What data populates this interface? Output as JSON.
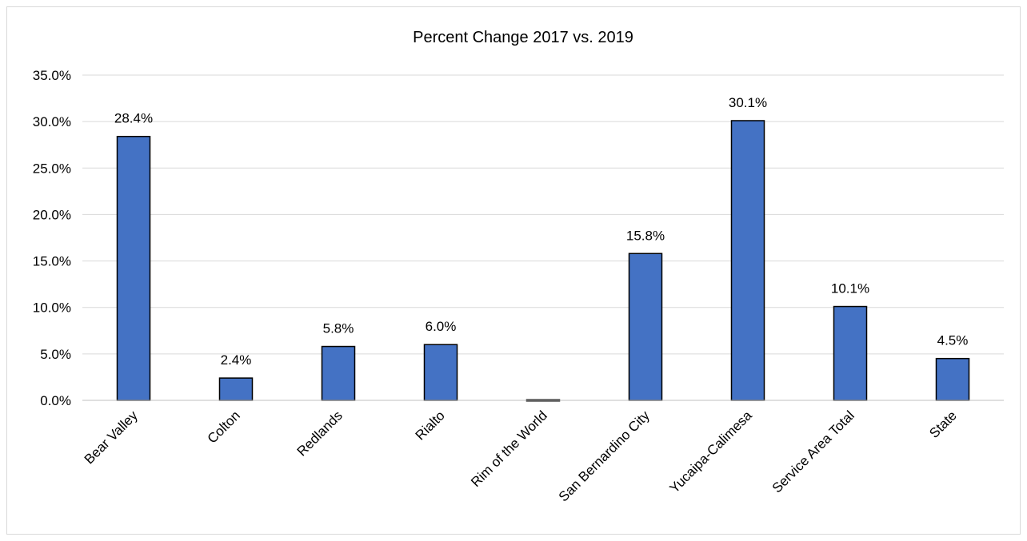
{
  "chart_data": {
    "type": "bar",
    "title": "Percent Change 2017 vs. 2019",
    "xlabel": "",
    "ylabel": "",
    "categories": [
      "Bear Valley",
      "Colton",
      "Redlands",
      "Rialto",
      "Rim of the World",
      "San Bernardino City",
      "Yucaipa-Calimesa",
      "Service Area Total",
      "State"
    ],
    "values": [
      28.4,
      2.4,
      5.8,
      6.0,
      -0.1,
      15.8,
      30.1,
      10.1,
      4.5
    ],
    "value_labels": [
      "28.4%",
      "2.4%",
      "5.8%",
      "6.0%",
      "",
      "15.8%",
      "30.1%",
      "10.1%",
      "4.5%"
    ],
    "ylim": [
      0,
      35
    ],
    "yticks": [
      0,
      5,
      10,
      15,
      20,
      25,
      30,
      35
    ],
    "ytick_labels": [
      "0.0%",
      "5.0%",
      "10.0%",
      "15.0%",
      "20.0%",
      "25.0%",
      "30.0%",
      "35.0%"
    ],
    "grid": true,
    "legend": "none",
    "bar_color": "#4472C4",
    "bar_edge_color": "#000000",
    "grid_color": "#d9d9d9",
    "axis_color": "#bfbfbf"
  }
}
